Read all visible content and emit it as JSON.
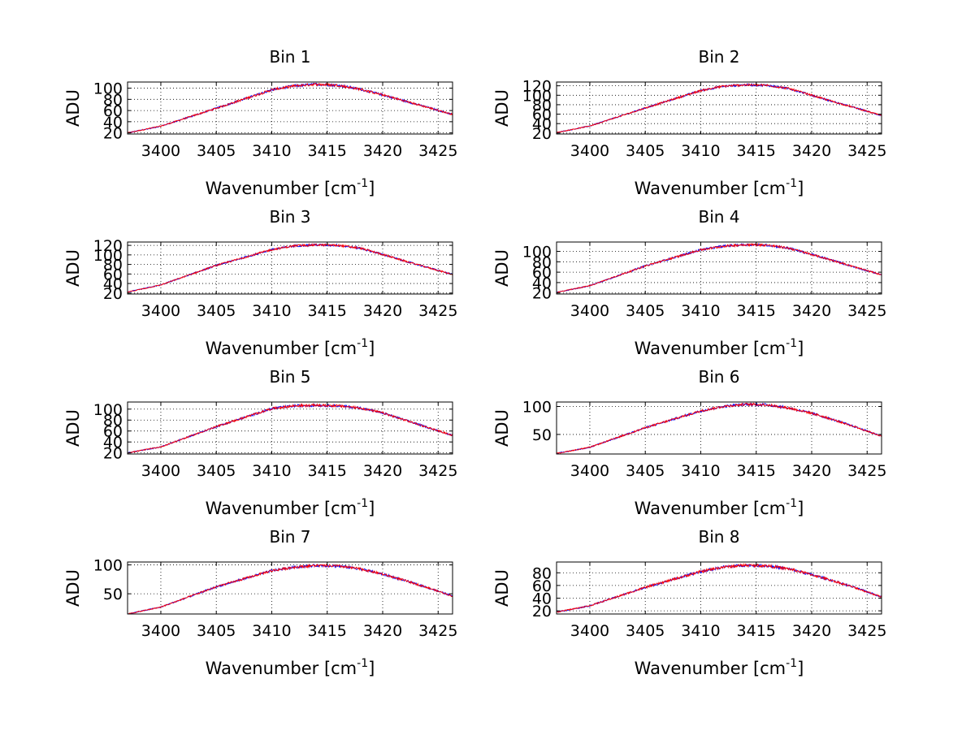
{
  "colors": {
    "series_a": "#0000ff",
    "series_b": "#ff0000",
    "frame": "#000000",
    "grid": "#000000"
  },
  "chart_data": [
    {
      "type": "line",
      "title": "Bin 1",
      "xlabel": "Wavenumber [cm",
      "xlabel_sup": "-1",
      "xlabel_end": "]",
      "ylabel": "ADU",
      "xlim": [
        3397,
        3426.3
      ],
      "ylim": [
        18,
        111
      ],
      "grid": true,
      "xticks": [
        3400,
        3405,
        3410,
        3415,
        3420,
        3425
      ],
      "yticks": [
        20,
        40,
        60,
        80,
        100
      ],
      "x": [
        3397,
        3400,
        3405,
        3410,
        3412,
        3414,
        3416,
        3418,
        3420,
        3422,
        3424,
        3426.3
      ],
      "y": [
        20,
        32,
        64,
        97,
        104,
        107,
        105,
        98,
        88,
        77,
        66,
        53
      ]
    },
    {
      "type": "line",
      "title": "Bin 2",
      "xlabel": "Wavenumber [cm",
      "xlabel_sup": "-1",
      "xlabel_end": "]",
      "ylabel": "ADU",
      "xlim": [
        3397,
        3426.3
      ],
      "ylim": [
        18,
        128
      ],
      "grid": true,
      "xticks": [
        3400,
        3405,
        3410,
        3415,
        3420,
        3425
      ],
      "yticks": [
        20,
        40,
        60,
        80,
        100,
        120
      ],
      "x": [
        3397,
        3400,
        3405,
        3410,
        3412,
        3414,
        3416,
        3418,
        3420,
        3422,
        3424,
        3426.3
      ],
      "y": [
        21,
        35,
        73,
        110,
        119,
        122,
        121,
        114,
        100,
        86,
        73,
        57
      ]
    },
    {
      "type": "line",
      "title": "Bin 3",
      "xlabel": "Wavenumber [cm",
      "xlabel_sup": "-1",
      "xlabel_end": "]",
      "ylabel": "ADU",
      "xlim": [
        3397,
        3426.3
      ],
      "ylim": [
        18,
        127
      ],
      "grid": true,
      "xticks": [
        3400,
        3405,
        3410,
        3415,
        3420,
        3425
      ],
      "yticks": [
        20,
        40,
        60,
        80,
        100,
        120
      ],
      "x": [
        3397,
        3400,
        3405,
        3410,
        3412,
        3414,
        3416,
        3418,
        3420,
        3422,
        3424,
        3426.3
      ],
      "y": [
        22,
        37,
        78,
        111,
        119,
        121,
        120,
        114,
        101,
        87,
        74,
        59
      ]
    },
    {
      "type": "line",
      "title": "Bin 4",
      "xlabel": "Wavenumber [cm",
      "xlabel_sup": "-1",
      "xlabel_end": "]",
      "ylabel": "ADU",
      "xlim": [
        3397,
        3426.3
      ],
      "ylim": [
        18,
        118
      ],
      "grid": true,
      "xticks": [
        3400,
        3405,
        3410,
        3415,
        3420,
        3425
      ],
      "yticks": [
        20,
        40,
        60,
        80,
        100
      ],
      "x": [
        3397,
        3400,
        3405,
        3410,
        3412,
        3414,
        3416,
        3418,
        3420,
        3422,
        3424,
        3426.3
      ],
      "y": [
        21,
        34,
        72,
        103,
        110,
        113,
        112,
        106,
        94,
        82,
        69,
        55
      ]
    },
    {
      "type": "line",
      "title": "Bin 5",
      "xlabel": "Wavenumber [cm",
      "xlabel_sup": "-1",
      "xlabel_end": "]",
      "ylabel": "ADU",
      "xlim": [
        3397,
        3426.3
      ],
      "ylim": [
        18,
        113
      ],
      "grid": true,
      "xticks": [
        3400,
        3405,
        3410,
        3415,
        3420,
        3425
      ],
      "yticks": [
        20,
        40,
        60,
        80,
        100
      ],
      "x": [
        3397,
        3400,
        3405,
        3410,
        3412,
        3414,
        3416,
        3418,
        3420,
        3422,
        3424,
        3426.3
      ],
      "y": [
        20,
        31,
        68,
        101,
        106,
        107,
        106,
        102,
        93,
        80,
        67,
        52
      ]
    },
    {
      "type": "line",
      "title": "Bin 6",
      "xlabel": "Wavenumber [cm",
      "xlabel_sup": "-1",
      "xlabel_end": "]",
      "ylabel": "ADU",
      "xlim": [
        3397,
        3426.3
      ],
      "ylim": [
        15,
        108
      ],
      "grid": true,
      "xticks": [
        3400,
        3405,
        3410,
        3415,
        3420,
        3425
      ],
      "yticks": [
        50,
        100
      ],
      "x": [
        3397,
        3400,
        3405,
        3410,
        3412,
        3414,
        3416,
        3418,
        3420,
        3422,
        3424,
        3426.3
      ],
      "y": [
        16,
        27,
        62,
        92,
        100,
        104,
        103,
        97,
        88,
        76,
        63,
        47
      ]
    },
    {
      "type": "line",
      "title": "Bin 7",
      "xlabel": "Wavenumber [cm",
      "xlabel_sup": "-1",
      "xlabel_end": "]",
      "ylabel": "ADU",
      "xlim": [
        3397,
        3426.3
      ],
      "ylim": [
        15,
        105
      ],
      "grid": true,
      "xticks": [
        3400,
        3405,
        3410,
        3415,
        3420,
        3425
      ],
      "yticks": [
        50,
        100
      ],
      "x": [
        3397,
        3400,
        3405,
        3410,
        3412,
        3414,
        3416,
        3418,
        3420,
        3422,
        3424,
        3426.3
      ],
      "y": [
        15,
        27,
        62,
        90,
        96,
        99,
        98,
        93,
        84,
        73,
        61,
        46
      ]
    },
    {
      "type": "line",
      "title": "Bin 8",
      "xlabel": "Wavenumber [cm",
      "xlabel_sup": "-1",
      "xlabel_end": "]",
      "ylabel": "ADU",
      "xlim": [
        3397,
        3426.3
      ],
      "ylim": [
        15,
        97
      ],
      "grid": true,
      "xticks": [
        3400,
        3405,
        3410,
        3415,
        3420,
        3425
      ],
      "yticks": [
        20,
        40,
        60,
        80
      ],
      "x": [
        3397,
        3400,
        3405,
        3410,
        3412,
        3414,
        3416,
        3418,
        3420,
        3422,
        3424,
        3426.3
      ],
      "y": [
        18,
        28,
        57,
        82,
        89,
        92,
        91,
        86,
        77,
        67,
        56,
        42
      ]
    }
  ]
}
